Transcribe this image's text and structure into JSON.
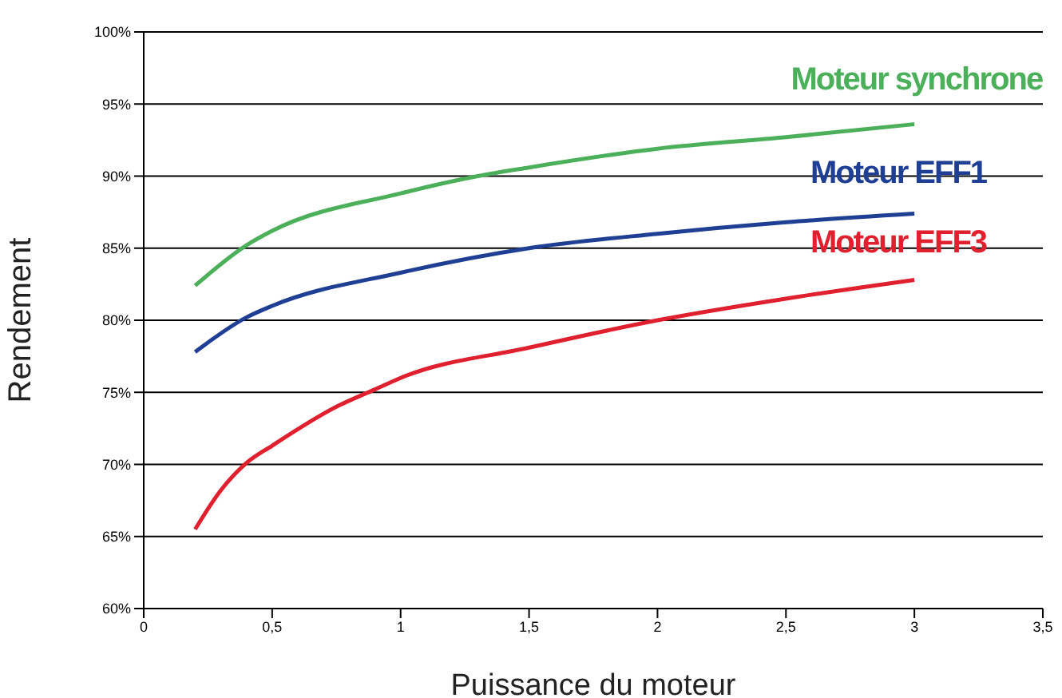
{
  "chart_data": {
    "type": "line",
    "xlabel": "Puissance du moteur",
    "ylabel": "Rendement",
    "xlim": [
      0,
      3.5
    ],
    "xticks": [
      0,
      {
        "value": 0.5,
        "label": "0,5"
      },
      1,
      {
        "value": 1.5,
        "label": "1,5"
      },
      2,
      {
        "value": 2.5,
        "label": "2,5"
      },
      3,
      {
        "value": 3.5,
        "label": "3,5"
      }
    ],
    "ylim": [
      60,
      100
    ],
    "yticks": [
      {
        "value": 60,
        "label": "60%"
      },
      {
        "value": 65,
        "label": "65%"
      },
      {
        "value": 70,
        "label": "70%"
      },
      {
        "value": 75,
        "label": "75%"
      },
      {
        "value": 80,
        "label": "80%"
      },
      {
        "value": 85,
        "label": "85%"
      },
      {
        "value": 90,
        "label": "90%"
      },
      {
        "value": 95,
        "label": "95%"
      },
      {
        "value": 100,
        "label": "100%"
      }
    ],
    "grid": "y",
    "marker": "none",
    "line_style": "solid",
    "series": [
      {
        "name": "Moteur synchrone",
        "color": "#4caf5a",
        "x": [
          0.2,
          0.4,
          0.5,
          1,
          1.3,
          1.5,
          2,
          2.5,
          3
        ],
        "values": [
          82.4,
          85.2,
          86.2,
          88.8,
          90,
          90.6,
          91.9,
          92.7,
          93.6
        ]
      },
      {
        "name": "Moteur EFF1",
        "color": "#1f3f94",
        "x": [
          0.2,
          0.4,
          0.5,
          1,
          1.5,
          2,
          2.5,
          3
        ],
        "values": [
          77.8,
          80.2,
          81,
          83.3,
          85,
          86,
          86.8,
          87.4
        ]
      },
      {
        "name": "Moteur EFF3",
        "color": "#e0202e",
        "x": [
          0.2,
          0.3,
          0.4,
          0.5,
          0.75,
          0.9,
          1,
          1.5,
          2,
          2.5,
          3
        ],
        "values": [
          65.5,
          68.2,
          70.1,
          71.3,
          74,
          75.2,
          76,
          78.1,
          80,
          81.5,
          82.8
        ]
      }
    ]
  }
}
